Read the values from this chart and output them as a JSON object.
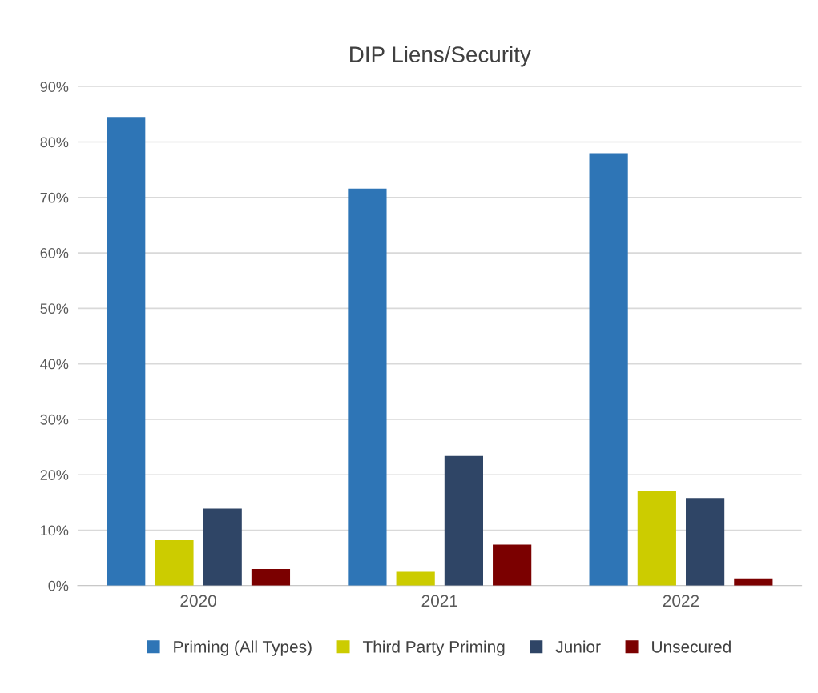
{
  "chart_data": {
    "type": "bar",
    "title": "DIP Liens/Security",
    "categories": [
      "2020",
      "2021",
      "2022"
    ],
    "series": [
      {
        "name": "Priming (All Types)",
        "color": "#2e75b6",
        "values": [
          84.5,
          71.6,
          78.0
        ]
      },
      {
        "name": "Third Party Priming",
        "color": "#cccc00",
        "values": [
          8.2,
          2.5,
          17.1
        ]
      },
      {
        "name": "Junior",
        "color": "#2f4566",
        "values": [
          13.9,
          23.4,
          15.8
        ]
      },
      {
        "name": "Unsecured",
        "color": "#7b0000",
        "values": [
          3.0,
          7.4,
          1.3
        ]
      }
    ],
    "ylim": [
      0,
      90
    ],
    "yticks": [
      {
        "value": 0,
        "label": "0%"
      },
      {
        "value": 10,
        "label": "10%"
      },
      {
        "value": 20,
        "label": "20%"
      },
      {
        "value": 30,
        "label": "30%"
      },
      {
        "value": 40,
        "label": "40%"
      },
      {
        "value": 50,
        "label": "50%"
      },
      {
        "value": 60,
        "label": "60%"
      },
      {
        "value": 70,
        "label": "70%"
      },
      {
        "value": 80,
        "label": "80%"
      },
      {
        "value": 90,
        "label": "90%"
      }
    ],
    "grid": "y",
    "legend": "bottom"
  }
}
